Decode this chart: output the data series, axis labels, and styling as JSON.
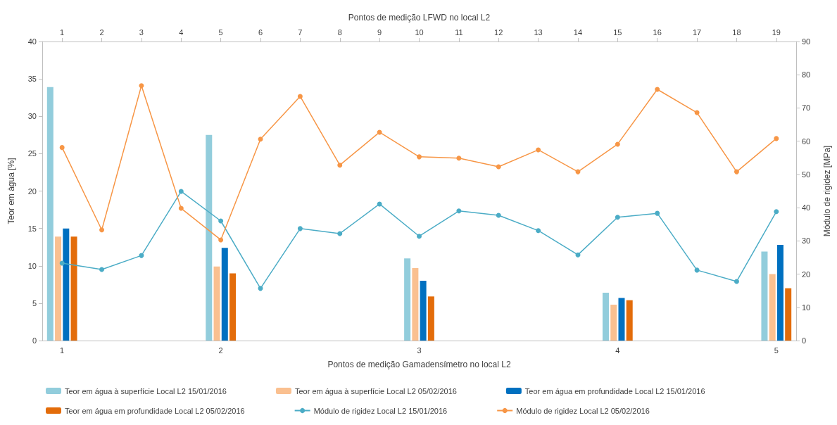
{
  "chart_data": {
    "type": "bar",
    "xlabel": "Pontos de medição Gamadensímetro no local L2",
    "x2label": "Pontos de medição LFWD no local L2",
    "ylabel": "Teor em àgua [%]",
    "y2label": "Módulo de rigidez [MPa]",
    "categories": [
      "1",
      null,
      null,
      null,
      "2",
      null,
      null,
      null,
      null,
      "3",
      null,
      null,
      null,
      null,
      "4",
      null,
      null,
      null,
      "5"
    ],
    "x2lim": [
      0.5,
      19.5
    ],
    "x2ticks": [
      1,
      2,
      3,
      4,
      5,
      6,
      7,
      8,
      9,
      10,
      11,
      12,
      13,
      14,
      15,
      16,
      17,
      18,
      19
    ],
    "ylim": [
      0,
      40
    ],
    "yticks": [
      0,
      5,
      10,
      15,
      20,
      25,
      30,
      35,
      40
    ],
    "y2lim": [
      0,
      90
    ],
    "y2ticks": [
      0,
      10,
      20,
      30,
      40,
      50,
      60,
      70,
      80,
      90
    ],
    "grid": false,
    "legend": "bottom",
    "marker": "circle",
    "series": [
      {
        "name": "Teor em água à superfície Local L2 15/01/2016",
        "color": "#92cddc",
        "values": [
          33.9,
          null,
          null,
          null,
          27.5,
          null,
          null,
          null,
          null,
          11.0,
          null,
          null,
          null,
          null,
          6.4,
          null,
          null,
          null,
          11.9
        ]
      },
      {
        "name": "Teor em água à superfície Local L2 05/02/2016",
        "color": "#fac090",
        "values": [
          13.9,
          null,
          null,
          null,
          9.9,
          null,
          null,
          null,
          null,
          9.7,
          null,
          null,
          null,
          null,
          4.8,
          null,
          null,
          null,
          8.9
        ]
      },
      {
        "name": "Teor em água em profundidade Local L2 15/01/2016",
        "color": "#0070c0",
        "values": [
          15.0,
          null,
          null,
          null,
          12.4,
          null,
          null,
          null,
          null,
          8.0,
          null,
          null,
          null,
          null,
          5.7,
          null,
          null,
          null,
          12.8
        ]
      },
      {
        "name": "Teor em água em profundidade Local L2 05/02/2016",
        "color": "#e36c0a",
        "values": [
          13.9,
          null,
          null,
          null,
          9.0,
          null,
          null,
          null,
          null,
          5.9,
          null,
          null,
          null,
          null,
          5.4,
          null,
          null,
          null,
          7.0
        ]
      },
      {
        "type": "line",
        "axis": "y2",
        "name": "Módulo de rigidez Local L2 15/01/2016",
        "color": "#4bacc6",
        "values": [
          23.3,
          21.4,
          25.6,
          44.9,
          36.0,
          15.7,
          33.7,
          32.2,
          41.1,
          31.4,
          39.0,
          37.7,
          33.1,
          25.8,
          37.1,
          38.3,
          21.2,
          17.8,
          38.8
        ]
      },
      {
        "type": "line",
        "axis": "y2",
        "name": "Módulo de rigidez Local L2 05/02/2016",
        "color": "#f79646",
        "values": [
          58.1,
          33.3,
          76.7,
          39.8,
          30.3,
          60.6,
          73.5,
          52.8,
          62.7,
          55.3,
          54.9,
          52.3,
          57.4,
          50.8,
          59.1,
          75.6,
          68.6,
          50.8,
          60.8
        ]
      }
    ]
  }
}
